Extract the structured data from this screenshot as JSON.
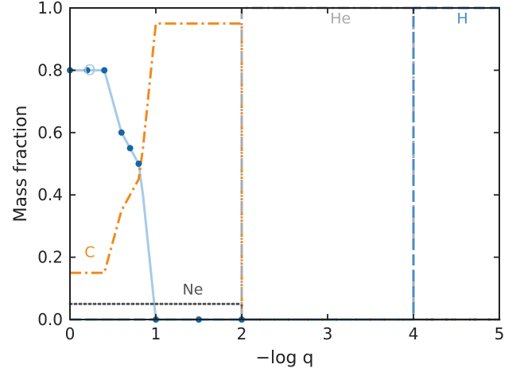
{
  "chart_data": {
    "type": "line",
    "xlabel": "−log q",
    "ylabel": "Mass fraction",
    "xlim": [
      0,
      5
    ],
    "ylim": [
      0,
      1.0
    ],
    "x_ticks": [
      0,
      1,
      2,
      3,
      4,
      5
    ],
    "x_tick_labels": [
      "0",
      "1",
      "2",
      "3",
      "4",
      "5"
    ],
    "y_ticks": [
      0.0,
      0.2,
      0.4,
      0.6,
      0.8,
      1.0
    ],
    "y_tick_labels": [
      "0.0",
      "0.2",
      "0.4",
      "0.6",
      "0.8",
      "1.0"
    ],
    "grid": false,
    "series": [
      {
        "name": "O",
        "color": "#a6cbe8",
        "style": "solid",
        "x": [
          0,
          0.2,
          0.4,
          0.6,
          0.7,
          0.8,
          0.85,
          1.0,
          1.5,
          2.0,
          5.0
        ],
        "y": [
          0.8,
          0.8,
          0.8,
          0.6,
          0.55,
          0.5,
          0.4,
          0.0,
          0.0,
          0.0,
          0.0
        ]
      },
      {
        "name": "C",
        "color": "#f28a1e",
        "style": "dashdot",
        "x": [
          0,
          0.4,
          0.6,
          0.7,
          0.8,
          0.85,
          1.0,
          2.0,
          2.0,
          5.0
        ],
        "y": [
          0.15,
          0.15,
          0.35,
          0.4,
          0.45,
          0.55,
          0.95,
          0.95,
          0.0,
          0.0
        ]
      },
      {
        "name": "Ne",
        "color": "#555555",
        "style": "dotted",
        "x": [
          0,
          2.0,
          2.0,
          5.0
        ],
        "y": [
          0.05,
          0.05,
          0.0,
          0.0
        ]
      },
      {
        "name": "He",
        "color": "#aaaaaa",
        "style": "dashdot",
        "x": [
          0,
          2.0,
          2.0,
          4.0,
          4.0,
          5.0
        ],
        "y": [
          0.0,
          0.0,
          1.0,
          1.0,
          0.0,
          0.0
        ]
      },
      {
        "name": "H",
        "color": "#4a8cc4",
        "style": "dashed",
        "x": [
          0,
          4.0,
          4.0,
          5.0
        ],
        "y": [
          0.0,
          0.0,
          1.0,
          1.0
        ]
      }
    ],
    "markers": {
      "color": "#1666a6",
      "x": [
        0,
        0.2,
        0.4,
        0.6,
        0.7,
        0.8,
        1.0,
        1.5,
        2.0
      ],
      "y": [
        0.8,
        0.8,
        0.8,
        0.6,
        0.55,
        0.5,
        0.0,
        0.0,
        0.0
      ]
    },
    "annotations": [
      {
        "text": "O",
        "x": 0.23,
        "y": 0.785,
        "color": "#a6cbe8"
      },
      {
        "text": "C",
        "x": 0.23,
        "y": 0.2,
        "color": "#f28a1e"
      },
      {
        "text": "Ne",
        "x": 1.43,
        "y": 0.08,
        "color": "#555555"
      },
      {
        "text": "He",
        "x": 3.15,
        "y": 0.95,
        "color": "#aaaaaa"
      },
      {
        "text": "H",
        "x": 4.57,
        "y": 0.95,
        "color": "#4a8cc4"
      }
    ]
  }
}
